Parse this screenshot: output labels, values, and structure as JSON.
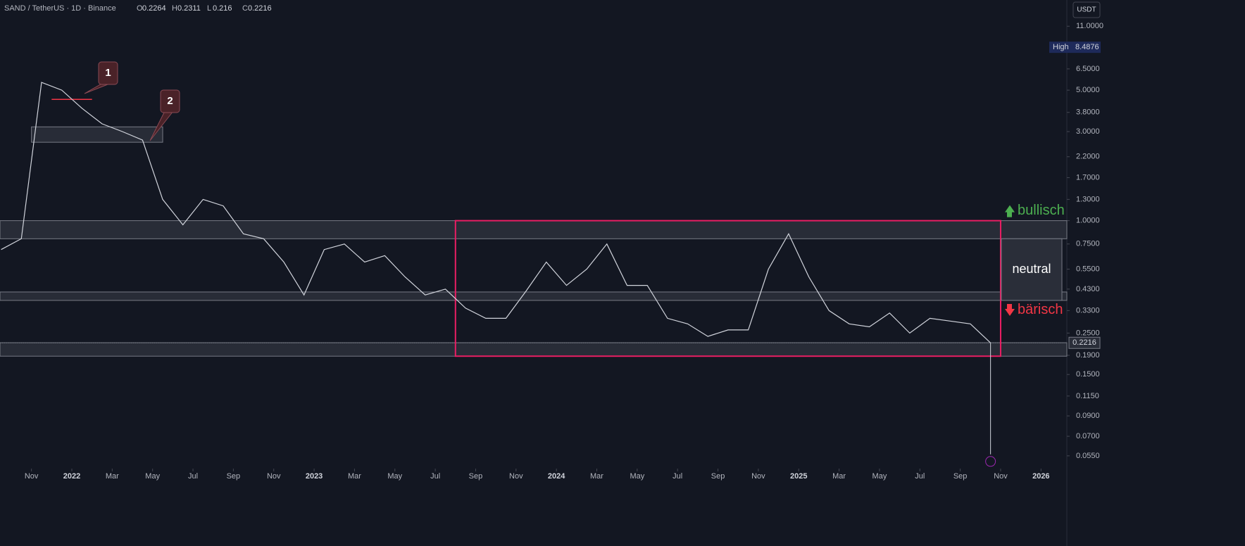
{
  "header": {
    "symbol": "SAND / TetherUS · 1D · Binance",
    "ohlc": [
      {
        "label": "O",
        "value": 0.2264
      },
      {
        "label": "H",
        "value": 0.2311
      },
      {
        "label": "L",
        "value": 0.216
      },
      {
        "label": "C",
        "value": 0.2216
      }
    ],
    "currency": "USDT"
  },
  "chart_data": {
    "type": "line",
    "color": "#d1d4dc",
    "log_scale": true,
    "x": [
      "2021-09",
      "2021-10",
      "2021-11",
      "2021-12",
      "2022-01",
      "2022-02",
      "2022-03",
      "2022-04",
      "2022-05",
      "2022-06",
      "2022-07",
      "2022-08",
      "2022-09",
      "2022-10",
      "2022-11",
      "2022-12",
      "2023-01",
      "2023-02",
      "2023-03",
      "2023-04",
      "2023-05",
      "2023-06",
      "2023-07",
      "2023-08",
      "2023-09",
      "2023-10",
      "2023-11",
      "2023-12",
      "2024-01",
      "2024-02",
      "2024-03",
      "2024-04",
      "2024-05",
      "2024-06",
      "2024-07",
      "2024-08",
      "2024-09",
      "2024-10",
      "2024-11",
      "2024-12",
      "2025-01",
      "2025-02",
      "2025-03",
      "2025-04",
      "2025-05",
      "2025-06",
      "2025-07",
      "2025-08",
      "2025-09",
      "2025-10"
    ],
    "values": [
      0.7,
      0.8,
      5.5,
      5.0,
      4.0,
      3.3,
      3.0,
      2.7,
      1.3,
      0.95,
      1.3,
      1.2,
      0.85,
      0.8,
      0.6,
      0.4,
      0.7,
      0.75,
      0.6,
      0.65,
      0.5,
      0.4,
      0.43,
      0.34,
      0.3,
      0.3,
      0.42,
      0.6,
      0.45,
      0.55,
      0.75,
      0.45,
      0.45,
      0.3,
      0.28,
      0.24,
      0.26,
      0.26,
      0.55,
      0.85,
      0.5,
      0.33,
      0.28,
      0.27,
      0.32,
      0.25,
      0.3,
      0.29,
      0.28,
      0.2216
    ],
    "xlim": [
      "2021-09",
      "2026-02"
    ],
    "xticks": [
      {
        "value": "2021-11",
        "label": "Nov"
      },
      {
        "value": "2022-01",
        "label": "2022"
      },
      {
        "value": "2022-03",
        "label": "Mar"
      },
      {
        "value": "2022-05",
        "label": "May"
      },
      {
        "value": "2022-07",
        "label": "Jul"
      },
      {
        "value": "2022-09",
        "label": "Sep"
      },
      {
        "value": "2022-11",
        "label": "Nov"
      },
      {
        "value": "2023-01",
        "label": "2023"
      },
      {
        "value": "2023-03",
        "label": "Mar"
      },
      {
        "value": "2023-05",
        "label": "May"
      },
      {
        "value": "2023-07",
        "label": "Jul"
      },
      {
        "value": "2023-09",
        "label": "Sep"
      },
      {
        "value": "2023-11",
        "label": "Nov"
      },
      {
        "value": "2024-01",
        "label": "2024"
      },
      {
        "value": "2024-03",
        "label": "Mar"
      },
      {
        "value": "2024-05",
        "label": "May"
      },
      {
        "value": "2024-07",
        "label": "Jul"
      },
      {
        "value": "2024-09",
        "label": "Sep"
      },
      {
        "value": "2024-11",
        "label": "Nov"
      },
      {
        "value": "2025-01",
        "label": "2025"
      },
      {
        "value": "2025-03",
        "label": "Mar"
      },
      {
        "value": "2025-05",
        "label": "May"
      },
      {
        "value": "2025-07",
        "label": "Jul"
      },
      {
        "value": "2025-09",
        "label": "Sep"
      },
      {
        "value": "2025-11",
        "label": "Nov"
      },
      {
        "value": "2026-01",
        "label": "2026"
      }
    ],
    "ylim": [
      0.0474,
      15.2
    ],
    "yticks": [
      {
        "value": 11,
        "label": "11.0000"
      },
      {
        "value": 6.5,
        "label": "6.5000"
      },
      {
        "value": 5,
        "label": "5.0000"
      },
      {
        "value": 3.8,
        "label": "3.8000"
      },
      {
        "value": 3,
        "label": "3.0000"
      },
      {
        "value": 2.2,
        "label": "2.2000"
      },
      {
        "value": 1.7,
        "label": "1.7000"
      },
      {
        "value": 1.3,
        "label": "1.3000"
      },
      {
        "value": 1,
        "label": "1.0000"
      },
      {
        "value": 0.75,
        "label": "0.7500"
      },
      {
        "value": 0.55,
        "label": "0.5500"
      },
      {
        "value": 0.43,
        "label": "0.4300"
      },
      {
        "value": 0.33,
        "label": "0.3300"
      },
      {
        "value": 0.25,
        "label": "0.2500"
      },
      {
        "value": 0.19,
        "label": "0.1900"
      },
      {
        "value": 0.15,
        "label": "0.1500"
      },
      {
        "value": 0.115,
        "label": "0.1150"
      },
      {
        "value": 0.09,
        "label": "0.0900"
      },
      {
        "value": 0.07,
        "label": "0.0700"
      },
      {
        "value": 0.055,
        "label": "0.0550"
      }
    ],
    "high": {
      "label": "High",
      "value": 8.4876
    },
    "last_price": 0.2216,
    "crash_wick": {
      "x": "2025-10",
      "low": 0.056
    },
    "zones": [
      {
        "from": "2021-11",
        "to": "2022-05",
        "low": 2.63,
        "high": 3.18
      },
      {
        "low": 0.8,
        "high": 1.0
      },
      {
        "low": 0.374,
        "high": 0.415
      },
      {
        "low": 0.188,
        "high": 0.222
      }
    ],
    "range_box": {
      "from": "2023-08",
      "to": "2025-11",
      "low": 0.188,
      "high": 1.0,
      "color": "#e91e63"
    },
    "level_line": {
      "from": "2021-12",
      "to": "2022-02",
      "value": 4.46,
      "color": "#f23645"
    },
    "callouts": [
      1,
      2
    ],
    "signals": {
      "bullish": {
        "label": "bullisch",
        "color": "#4caf50"
      },
      "neutral": {
        "label": "neutral"
      },
      "bearish": {
        "label": "bärisch",
        "color": "#f23645"
      }
    }
  }
}
